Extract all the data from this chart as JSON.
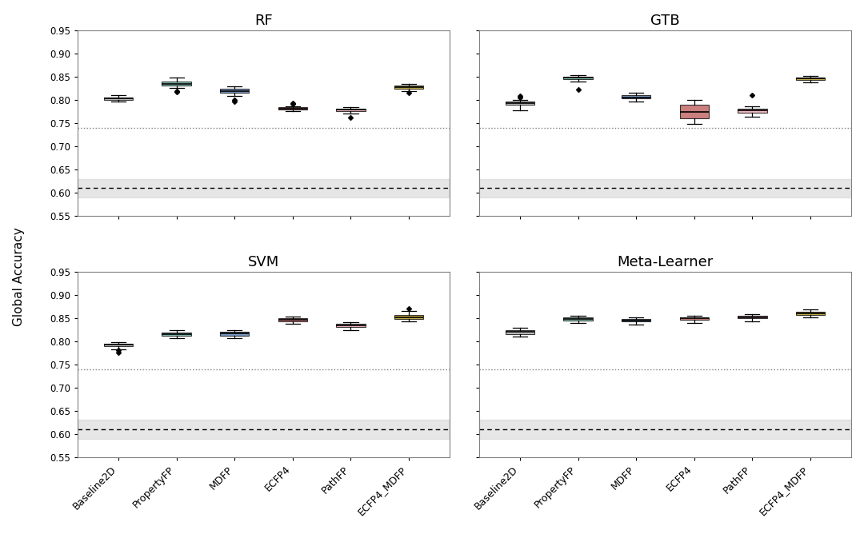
{
  "subplots": [
    "RF",
    "GTB",
    "SVM",
    "Meta-Learner"
  ],
  "categories": [
    "Baseline2D",
    "PropertyFP",
    "MDFP",
    "ECFP4",
    "PathFP",
    "ECFP4_MDFP"
  ],
  "box_colors": [
    "#a8a8a8",
    "#5fad9b",
    "#4f7aaf",
    "#bc5454",
    "#e8a0a8",
    "#b8960c"
  ],
  "ylabel": "Global Accuracy",
  "ylim": [
    0.55,
    0.95
  ],
  "yticks": [
    0.55,
    0.6,
    0.65,
    0.7,
    0.75,
    0.8,
    0.85,
    0.9,
    0.95
  ],
  "dotted_line": 0.74,
  "dashed_line": 0.61,
  "band_low": 0.59,
  "band_high": 0.63,
  "RF": {
    "Baseline2D": {
      "med": 0.803,
      "q1": 0.8,
      "q3": 0.806,
      "whislo": 0.796,
      "whishi": 0.81,
      "fliers": []
    },
    "PropertyFP": {
      "med": 0.835,
      "q1": 0.831,
      "q3": 0.84,
      "whislo": 0.826,
      "whishi": 0.848,
      "fliers": [
        0.82,
        0.817
      ]
    },
    "MDFP": {
      "med": 0.82,
      "q1": 0.816,
      "q3": 0.824,
      "whislo": 0.809,
      "whishi": 0.83,
      "fliers": [
        0.8,
        0.797
      ]
    },
    "ECFP4": {
      "med": 0.782,
      "q1": 0.78,
      "q3": 0.784,
      "whislo": 0.776,
      "whishi": 0.786,
      "fliers": [
        0.792,
        0.794
      ]
    },
    "PathFP": {
      "med": 0.779,
      "q1": 0.776,
      "q3": 0.782,
      "whislo": 0.771,
      "whishi": 0.785,
      "fliers": [
        0.762
      ]
    },
    "ECFP4_MDFP": {
      "med": 0.828,
      "q1": 0.824,
      "q3": 0.832,
      "whislo": 0.82,
      "whishi": 0.835,
      "fliers": [
        0.816
      ]
    }
  },
  "GTB": {
    "Baseline2D": {
      "med": 0.793,
      "q1": 0.789,
      "q3": 0.797,
      "whislo": 0.778,
      "whishi": 0.8,
      "fliers": [
        0.805,
        0.808
      ]
    },
    "PropertyFP": {
      "med": 0.848,
      "q1": 0.845,
      "q3": 0.85,
      "whislo": 0.84,
      "whishi": 0.853,
      "fliers": [
        0.822
      ]
    },
    "MDFP": {
      "med": 0.806,
      "q1": 0.803,
      "q3": 0.811,
      "whislo": 0.797,
      "whishi": 0.816,
      "fliers": []
    },
    "ECFP4": {
      "med": 0.775,
      "q1": 0.76,
      "q3": 0.79,
      "whislo": 0.748,
      "whishi": 0.8,
      "fliers": []
    },
    "PathFP": {
      "med": 0.777,
      "q1": 0.773,
      "q3": 0.782,
      "whislo": 0.764,
      "whishi": 0.787,
      "fliers": [
        0.81
      ]
    },
    "ECFP4_MDFP": {
      "med": 0.847,
      "q1": 0.844,
      "q3": 0.849,
      "whislo": 0.838,
      "whishi": 0.852,
      "fliers": []
    }
  },
  "SVM": {
    "Baseline2D": {
      "med": 0.792,
      "q1": 0.789,
      "q3": 0.794,
      "whislo": 0.783,
      "whishi": 0.797,
      "fliers": [
        0.78,
        0.776
      ]
    },
    "PropertyFP": {
      "med": 0.815,
      "q1": 0.812,
      "q3": 0.819,
      "whislo": 0.806,
      "whishi": 0.824,
      "fliers": []
    },
    "MDFP": {
      "med": 0.816,
      "q1": 0.812,
      "q3": 0.82,
      "whislo": 0.806,
      "whishi": 0.824,
      "fliers": []
    },
    "ECFP4": {
      "med": 0.846,
      "q1": 0.843,
      "q3": 0.849,
      "whislo": 0.837,
      "whishi": 0.853,
      "fliers": []
    },
    "PathFP": {
      "med": 0.834,
      "q1": 0.831,
      "q3": 0.837,
      "whislo": 0.824,
      "whishi": 0.841,
      "fliers": []
    },
    "ECFP4_MDFP": {
      "med": 0.852,
      "q1": 0.848,
      "q3": 0.857,
      "whislo": 0.843,
      "whishi": 0.865,
      "fliers": [
        0.87
      ]
    }
  },
  "Meta-Learner": {
    "Baseline2D": {
      "med": 0.82,
      "q1": 0.815,
      "q3": 0.824,
      "whislo": 0.81,
      "whishi": 0.828,
      "fliers": []
    },
    "PropertyFP": {
      "med": 0.848,
      "q1": 0.845,
      "q3": 0.851,
      "whislo": 0.84,
      "whishi": 0.855,
      "fliers": []
    },
    "MDFP": {
      "med": 0.845,
      "q1": 0.842,
      "q3": 0.848,
      "whislo": 0.836,
      "whishi": 0.851,
      "fliers": []
    },
    "ECFP4": {
      "med": 0.849,
      "q1": 0.846,
      "q3": 0.852,
      "whislo": 0.84,
      "whishi": 0.855,
      "fliers": []
    },
    "PathFP": {
      "med": 0.852,
      "q1": 0.849,
      "q3": 0.855,
      "whislo": 0.843,
      "whishi": 0.859,
      "fliers": []
    },
    "ECFP4_MDFP": {
      "med": 0.86,
      "q1": 0.857,
      "q3": 0.863,
      "whislo": 0.852,
      "whishi": 0.868,
      "fliers": []
    }
  }
}
